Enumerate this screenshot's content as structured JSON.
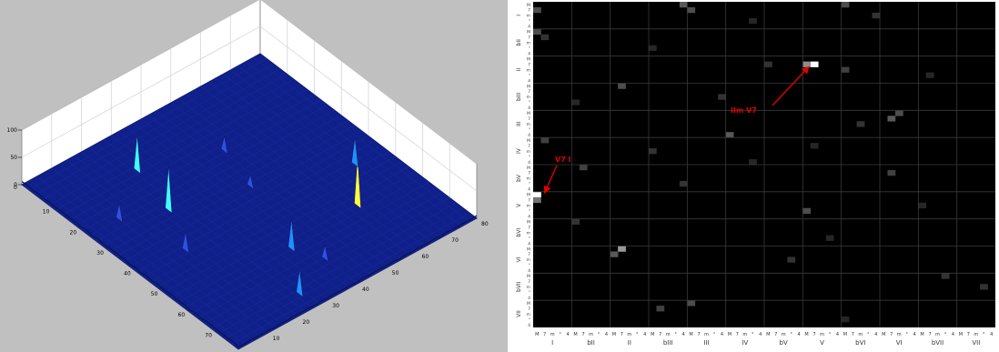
{
  "chart_data": [
    {
      "type": "surface3d",
      "title": "",
      "z_ticks": [
        "0",
        "50",
        "100"
      ],
      "x_ticks": [
        "0",
        "10",
        "20",
        "30",
        "40",
        "50",
        "60",
        "70",
        "80"
      ],
      "y_ticks": [
        "0",
        "10",
        "20",
        "30",
        "40",
        "50",
        "60",
        "70",
        "80"
      ],
      "zlim": [
        0,
        100
      ],
      "xlim": [
        0,
        80
      ],
      "ylim": [
        0,
        80
      ],
      "colormap": "jet",
      "background": "#c0c0c0",
      "peaks": [
        {
          "x": 6,
          "y": 26,
          "z": 45
        },
        {
          "x": 20,
          "y": 36,
          "z": 55
        },
        {
          "x": 22,
          "y": 60,
          "z": 90
        },
        {
          "x": 34,
          "y": 70,
          "z": 50
        },
        {
          "x": 36,
          "y": 15,
          "z": 35
        },
        {
          "x": 50,
          "y": 22,
          "z": 80
        },
        {
          "x": 66,
          "y": 26,
          "z": 65
        },
        {
          "x": 55,
          "y": 10,
          "z": 30
        },
        {
          "x": 58,
          "y": 48,
          "z": 28
        },
        {
          "x": 12,
          "y": 40,
          "z": 25
        },
        {
          "x": 44,
          "y": 44,
          "z": 22
        }
      ]
    },
    {
      "type": "heatmap",
      "background": "#000000",
      "row_groups": [
        "I",
        "bII",
        "II",
        "bIII",
        "III",
        "IV",
        "bV",
        "V",
        "bVI",
        "VI",
        "bVII",
        "VII"
      ],
      "col_groups": [
        "I",
        "bII",
        "II",
        "bIII",
        "III",
        "IV",
        "bV",
        "V",
        "bVI",
        "VI",
        "bVII",
        "VII"
      ],
      "sub_labels": [
        "M",
        "7",
        "m",
        "°",
        "4"
      ],
      "row_sub_labels": [
        "M",
        "7",
        "m",
        "°",
        "4"
      ],
      "annotations": [
        {
          "text": "V7 I",
          "color": "#e00000",
          "row_group": 7,
          "col_group": 0
        },
        {
          "text": "IIm V7",
          "color": "#e00000",
          "row_group": 2,
          "col_group": 7
        }
      ],
      "cells": [
        {
          "r": 35,
          "c": 0,
          "v": 1.0
        },
        {
          "r": 11,
          "c": 36,
          "v": 1.0
        },
        {
          "r": 36,
          "c": 0,
          "v": 0.45
        },
        {
          "r": 11,
          "c": 35,
          "v": 0.55
        },
        {
          "r": 45,
          "c": 11,
          "v": 0.6
        },
        {
          "r": 46,
          "c": 10,
          "v": 0.35
        },
        {
          "r": 1,
          "c": 0,
          "v": 0.3
        },
        {
          "r": 5,
          "c": 0,
          "v": 0.3
        },
        {
          "r": 0,
          "c": 19,
          "v": 0.35
        },
        {
          "r": 1,
          "c": 20,
          "v": 0.3
        },
        {
          "r": 0,
          "c": 40,
          "v": 0.3
        },
        {
          "r": 21,
          "c": 46,
          "v": 0.35
        },
        {
          "r": 20,
          "c": 47,
          "v": 0.3
        },
        {
          "r": 24,
          "c": 25,
          "v": 0.35
        },
        {
          "r": 30,
          "c": 6,
          "v": 0.25
        },
        {
          "r": 15,
          "c": 11,
          "v": 0.3
        },
        {
          "r": 38,
          "c": 35,
          "v": 0.3
        },
        {
          "r": 55,
          "c": 20,
          "v": 0.3
        },
        {
          "r": 56,
          "c": 16,
          "v": 0.25
        },
        {
          "r": 25,
          "c": 1,
          "v": 0.25
        },
        {
          "r": 12,
          "c": 40,
          "v": 0.25
        },
        {
          "r": 31,
          "c": 46,
          "v": 0.25
        },
        {
          "r": 17,
          "c": 24,
          "v": 0.2
        },
        {
          "r": 6,
          "c": 1,
          "v": 0.2
        },
        {
          "r": 40,
          "c": 5,
          "v": 0.2
        },
        {
          "r": 50,
          "c": 53,
          "v": 0.2
        },
        {
          "r": 11,
          "c": 30,
          "v": 0.2
        },
        {
          "r": 22,
          "c": 42,
          "v": 0.2
        },
        {
          "r": 33,
          "c": 19,
          "v": 0.2
        },
        {
          "r": 2,
          "c": 44,
          "v": 0.2
        },
        {
          "r": 27,
          "c": 15,
          "v": 0.2
        },
        {
          "r": 47,
          "c": 33,
          "v": 0.2
        },
        {
          "r": 52,
          "c": 58,
          "v": 0.2
        },
        {
          "r": 8,
          "c": 15,
          "v": 0.15
        },
        {
          "r": 18,
          "c": 5,
          "v": 0.15
        },
        {
          "r": 43,
          "c": 38,
          "v": 0.15
        },
        {
          "r": 29,
          "c": 28,
          "v": 0.15
        },
        {
          "r": 37,
          "c": 50,
          "v": 0.15
        },
        {
          "r": 13,
          "c": 51,
          "v": 0.15
        },
        {
          "r": 3,
          "c": 28,
          "v": 0.15
        },
        {
          "r": 58,
          "c": 40,
          "v": 0.15
        },
        {
          "r": 26,
          "c": 36,
          "v": 0.15
        }
      ]
    }
  ]
}
